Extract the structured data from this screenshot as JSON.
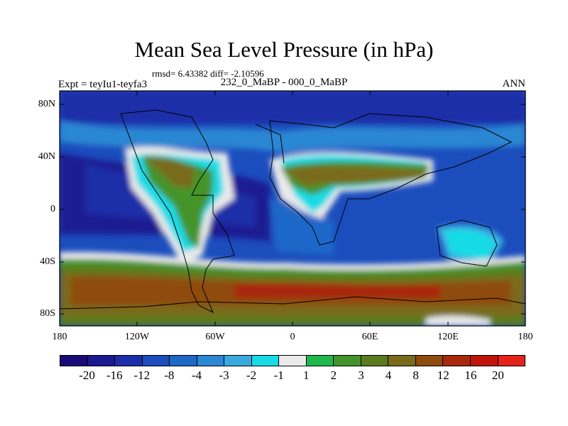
{
  "title": "Mean Sea Level Pressure (in hPa)",
  "stats_text": "rmsd= 6.43382 diff= -2.10596",
  "left_label": "Expt = teyIu1-teyfa3",
  "center_label": "232_0_MaBP - 000_0_MaBP",
  "right_label": "ANN",
  "y_ticks": [
    "80N",
    "40N",
    "0",
    "40S",
    "80S"
  ],
  "x_ticks": [
    "180",
    "120W",
    "60W",
    "0",
    "60E",
    "120E",
    "180"
  ],
  "colorbar": {
    "labels": [
      "-20",
      "-16",
      "-12",
      "-8",
      "-4",
      "-3",
      "-2",
      "-1",
      "1",
      "2",
      "3",
      "4",
      "8",
      "12",
      "16",
      "20"
    ],
    "colors": [
      "#1a0a78",
      "#1c1a92",
      "#1b2fa8",
      "#1b4dbd",
      "#1e68c8",
      "#2b87d3",
      "#3aa9df",
      "#18dbe6",
      "#eaeaea",
      "#1fb84e",
      "#44942b",
      "#5c7b1f",
      "#7a6a1c",
      "#8f4b10",
      "#a8280a",
      "#c0140a",
      "#e4231a"
    ]
  },
  "chart_data": {
    "type": "heatmap",
    "title": "Mean Sea Level Pressure (in hPa)",
    "x_range_deg": [
      -180,
      180
    ],
    "y_range_deg": [
      -90,
      90
    ],
    "x_ticks": [
      "180",
      "120W",
      "60W",
      "0",
      "60E",
      "120E",
      "180"
    ],
    "y_ticks": [
      "80N",
      "40N",
      "0",
      "40S",
      "80S"
    ],
    "levels": [
      -20,
      -16,
      -12,
      -8,
      -4,
      -3,
      -2,
      -1,
      1,
      2,
      3,
      4,
      8,
      12,
      16,
      20
    ],
    "rmsd": 6.43382,
    "diff": -2.10596
  }
}
